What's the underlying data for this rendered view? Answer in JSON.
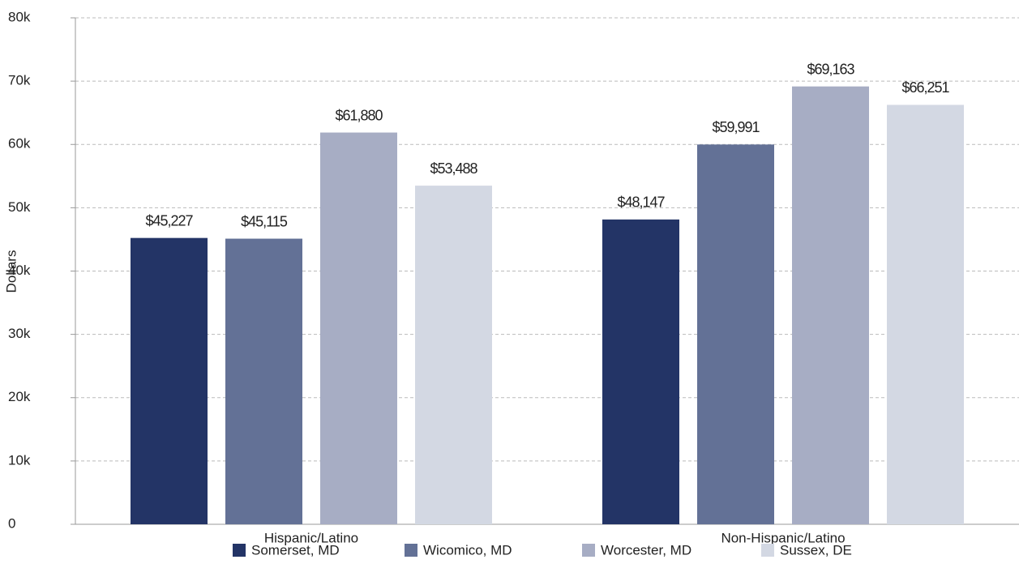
{
  "chart_data": {
    "type": "bar",
    "y_label": "Dollars",
    "categories": [
      "Hispanic/Latino",
      "Non-Hispanic/Latino"
    ],
    "series": [
      {
        "name": "Somerset, MD",
        "color": "#233466",
        "values": [
          45227,
          48147
        ],
        "value_labels": [
          "$45,227",
          "$48,147"
        ]
      },
      {
        "name": "Wicomico, MD",
        "color": "#637196",
        "values": [
          45115,
          59991
        ],
        "value_labels": [
          "$45,115",
          "$59,991"
        ]
      },
      {
        "name": "Worcester, MD",
        "color": "#a7adc4",
        "values": [
          61880,
          69163
        ],
        "value_labels": [
          "$61,880",
          "$69,163"
        ]
      },
      {
        "name": "Sussex, DE",
        "color": "#d3d8e3",
        "values": [
          53488,
          66251
        ],
        "value_labels": [
          "$53,488",
          "$66,251"
        ]
      }
    ],
    "ylim": [
      0,
      80000
    ],
    "yticks": [
      0,
      {
        "value": 10000,
        "label": "10k"
      },
      {
        "value": 20000,
        "label": "20k"
      },
      {
        "value": 30000,
        "label": "30k"
      },
      {
        "value": 40000,
        "label": "40k"
      },
      {
        "value": 50000,
        "label": "50k"
      },
      {
        "value": 60000,
        "label": "60k"
      },
      {
        "value": 70000,
        "label": "70k"
      },
      {
        "value": 80000,
        "label": "80k"
      }
    ],
    "grid": true,
    "legend": "bottom"
  }
}
